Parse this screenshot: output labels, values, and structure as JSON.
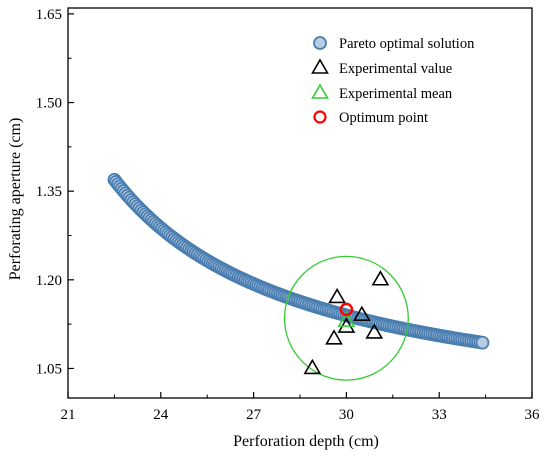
{
  "chart_data": {
    "type": "scatter",
    "xlabel": "Perforation depth (cm)",
    "ylabel": "Perforating aperture (cm)",
    "xlim": [
      21,
      36
    ],
    "ylim": [
      1.0,
      1.66
    ],
    "xticks": [
      21,
      24,
      27,
      30,
      33,
      36
    ],
    "yticks": [
      1.05,
      1.2,
      1.35,
      1.5,
      1.65
    ],
    "xtick_labels": [
      "21",
      "24",
      "27",
      "30",
      "33",
      "36"
    ],
    "ytick_labels": [
      "1.05",
      "1.20",
      "1.35",
      "1.50",
      "1.65"
    ],
    "legend_position": "top-right",
    "grid": false,
    "series": [
      {
        "name": "Pareto optimal solution",
        "marker": "circle",
        "color": "#4a7eb0",
        "fill": "#b8cce4",
        "curve": {
          "form": "a/(x-b)+c",
          "a": 2.6,
          "b": 16.3,
          "c": 0.95
        },
        "x_range": [
          22.5,
          34.4
        ],
        "density": "dense"
      },
      {
        "name": "Experimental value",
        "marker": "triangle",
        "color": "#000000",
        "x": [
          28.9,
          29.6,
          29.7,
          30.0,
          30.5,
          30.9,
          31.1
        ],
        "y": [
          1.05,
          1.1,
          1.17,
          1.12,
          1.14,
          1.11,
          1.2
        ]
      },
      {
        "name": "Experimental mean",
        "marker": "triangle",
        "color": "#33cc33",
        "x": [
          30.0
        ],
        "y": [
          1.13
        ]
      },
      {
        "name": "Optimum point",
        "marker": "circle",
        "color": "#ff0000",
        "x": [
          30.0
        ],
        "y": [
          1.15
        ]
      }
    ],
    "annotations": [
      {
        "type": "circle",
        "color": "#33cc33",
        "center": [
          30.0,
          1.135
        ],
        "radius_x": 2.0
      }
    ]
  }
}
